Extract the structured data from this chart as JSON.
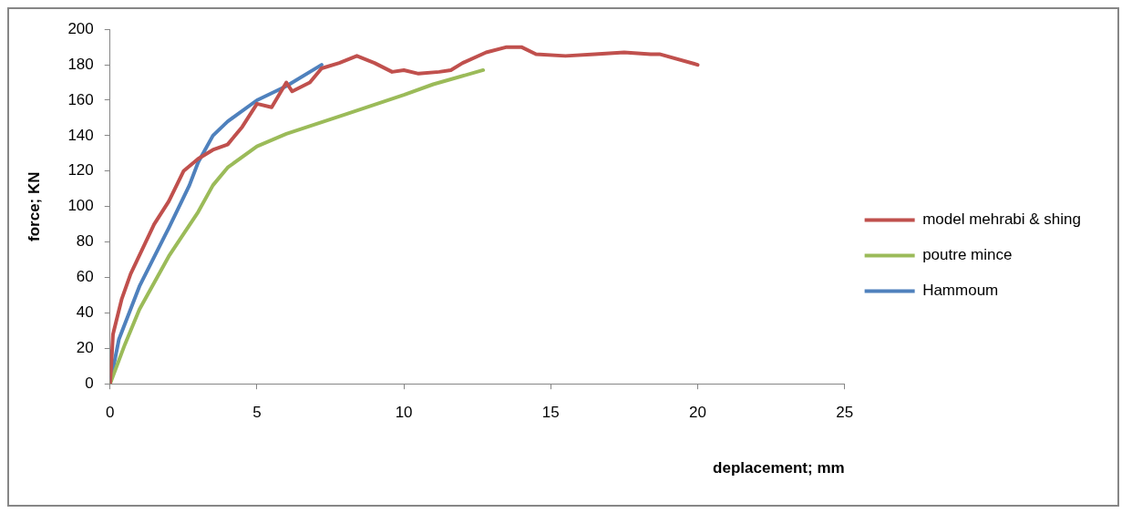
{
  "chart_data": {
    "type": "line",
    "xlabel": "deplacement; mm",
    "ylabel": "force; KN",
    "xlim": [
      0,
      25
    ],
    "xticks": [
      0,
      5,
      10,
      15,
      20,
      25
    ],
    "ylim": [
      0,
      200
    ],
    "yticks": [
      0,
      20,
      40,
      60,
      80,
      100,
      120,
      140,
      160,
      180,
      200
    ],
    "grid": false,
    "legend": "right",
    "marker": "none",
    "line_style": "solid",
    "series": [
      {
        "name": "model mehrabi & shing",
        "color": "#c0504d",
        "x": [
          0,
          0.05,
          0.1,
          0.4,
          0.7,
          1.1,
          1.5,
          2,
          2.5,
          3,
          3.5,
          4,
          4.5,
          5,
          5.5,
          6,
          6.2,
          6.8,
          7.2,
          7.8,
          8.4,
          9,
          9.6,
          10,
          10.5,
          11.2,
          11.6,
          12,
          12.8,
          13.5,
          14,
          14.5,
          15.5,
          16.5,
          17.5,
          18.4,
          18.7,
          20
        ],
        "values": [
          0,
          13,
          28,
          48,
          62,
          76,
          90,
          103,
          120,
          127,
          132,
          135,
          145,
          158,
          156,
          170,
          165,
          170,
          178,
          181,
          185,
          181,
          176,
          177,
          175,
          176,
          177,
          181,
          187,
          190,
          190,
          186,
          185,
          186,
          187,
          186,
          186,
          180
        ]
      },
      {
        "name": "poutre mince",
        "color": "#9bbb59",
        "x": [
          0,
          0.5,
          1,
          2,
          3,
          3.5,
          4,
          5,
          6,
          8,
          10,
          11,
          12.7
        ],
        "values": [
          0,
          22,
          42,
          72,
          97,
          112,
          122,
          134,
          141,
          152,
          163,
          169,
          177
        ]
      },
      {
        "name": "Hammoum",
        "color": "#4f81bd",
        "x": [
          0,
          0.3,
          1,
          2,
          2.7,
          3,
          3.5,
          4,
          5,
          6,
          7.2
        ],
        "values": [
          0,
          25,
          55,
          88,
          112,
          125,
          140,
          148,
          160,
          168,
          180
        ]
      }
    ]
  }
}
